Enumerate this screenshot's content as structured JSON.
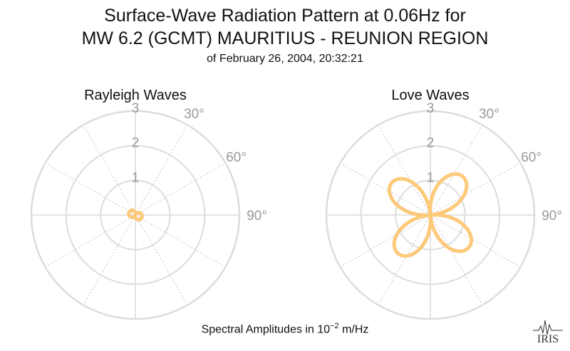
{
  "title": {
    "line1": "Surface-Wave Radiation Pattern at 0.06Hz for",
    "line2": "MW 6.2 (GCMT) MAURITIUS - REUNION REGION",
    "line3": "of February 26, 2004, 20:32:21"
  },
  "footer": {
    "prefix": "Spectral Amplitudes in ",
    "base": "10",
    "exponent": "−2",
    "suffix": " m/Hz"
  },
  "logo": {
    "text": "IRIS"
  },
  "chart_data": [
    {
      "type": "polar-line",
      "title": "Rayleigh Waves",
      "r_ticks": [
        1,
        2,
        3
      ],
      "rlim": [
        0,
        3
      ],
      "theta_tick_labels": [
        "30°",
        "60°",
        "90°"
      ],
      "theta_zero": "top",
      "theta_direction": "clockwise",
      "grid": true,
      "series_color": "#fdc97a",
      "pattern": {
        "kind": "two-lobe",
        "peak_amplitude": 0.2,
        "peak_azimuth_deg": 110
      }
    },
    {
      "type": "polar-line",
      "title": "Love Waves",
      "r_ticks": [
        1,
        2,
        3
      ],
      "rlim": [
        0,
        3
      ],
      "theta_tick_labels": [
        "30°",
        "60°",
        "90°"
      ],
      "theta_zero": "top",
      "theta_direction": "clockwise",
      "grid": true,
      "series_color": "#fdc97a",
      "pattern": {
        "kind": "four-lobe",
        "peak_amplitude": 1.45,
        "peak_azimuth_deg": 40
      }
    }
  ]
}
